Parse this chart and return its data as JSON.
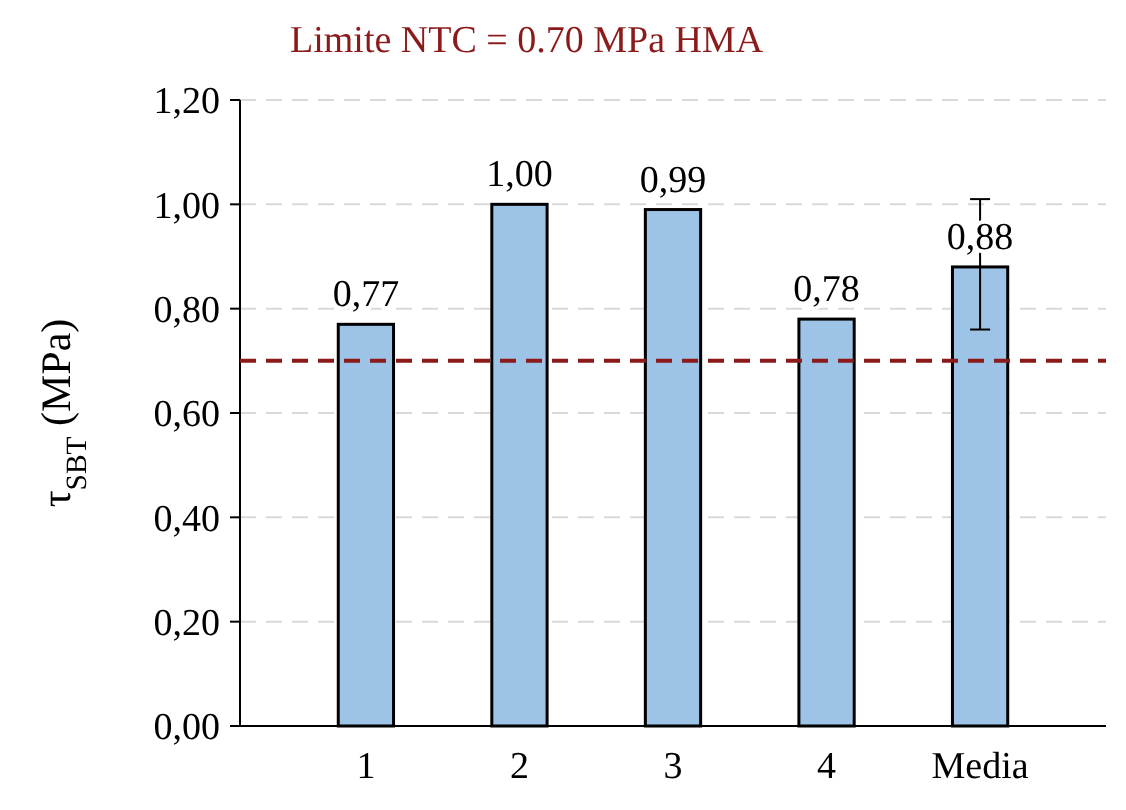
{
  "chart_data": {
    "type": "bar",
    "ylabel": "τ$_{SBT}$ (MPa)",
    "categories": [
      "1",
      "2",
      "3",
      "4",
      "Media"
    ],
    "values": [
      0.77,
      1.0,
      0.99,
      0.78,
      0.88
    ],
    "value_labels": [
      "0,77",
      "1,00",
      "0,99",
      "0,78",
      "0,88"
    ],
    "errors": [
      null,
      null,
      null,
      null,
      [
        0.76,
        1.01
      ]
    ],
    "color": "#9dc3e6",
    "ylim": [
      0,
      1.2
    ],
    "yticks": [
      {
        "value": 0,
        "label": "0,00"
      },
      {
        "value": 0.2,
        "label": "0,20"
      },
      {
        "value": 0.4,
        "label": "0,40"
      },
      {
        "value": 0.6,
        "label": "0,60"
      },
      {
        "value": 0.8,
        "label": "0,80"
      },
      {
        "value": 1.0,
        "label": "1,00"
      },
      {
        "value": 1.2,
        "label": "1,20"
      }
    ],
    "grid": "y",
    "ref_lines": [
      {
        "axis": "y",
        "value": 0.7,
        "label": "Limite NTC = 0.70 MPa HMA",
        "color": "#8b1a1a",
        "line_style": "dashed"
      }
    ]
  }
}
